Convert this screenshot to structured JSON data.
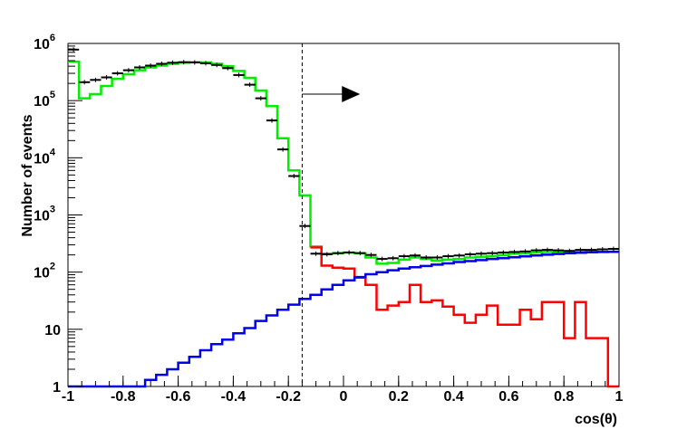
{
  "chart_data": {
    "type": "line",
    "title": "",
    "xlabel": "cos(θ)",
    "ylabel": "Number of events",
    "xlim": [
      -1,
      1
    ],
    "ylim": [
      1,
      1000000
    ],
    "y_scale": "log",
    "x_ticks": [
      {
        "value": -1,
        "label": "-1"
      },
      {
        "value": -0.8,
        "label": "-0.8"
      },
      {
        "value": -0.6,
        "label": "-0.6"
      },
      {
        "value": -0.4,
        "label": "-0.4"
      },
      {
        "value": -0.2,
        "label": "-0.2"
      },
      {
        "value": 0,
        "label": "0"
      },
      {
        "value": 0.2,
        "label": "0.2"
      },
      {
        "value": 0.4,
        "label": "0.4"
      },
      {
        "value": 0.6,
        "label": "0.6"
      },
      {
        "value": 0.8,
        "label": "0.8"
      },
      {
        "value": 1,
        "label": "1"
      }
    ],
    "y_ticks": [
      {
        "value": 1,
        "base": "1",
        "exp": ""
      },
      {
        "value": 10,
        "base": "10",
        "exp": ""
      },
      {
        "value": 100,
        "base": "10",
        "exp": "2"
      },
      {
        "value": 1000,
        "base": "10",
        "exp": "3"
      },
      {
        "value": 10000,
        "base": "10",
        "exp": "4"
      },
      {
        "value": 100000,
        "base": "10",
        "exp": "5"
      },
      {
        "value": 1000000,
        "base": "10",
        "exp": "6"
      }
    ],
    "cut_line": {
      "x": -0.15
    },
    "cut_arrow": {
      "from_x": -0.15,
      "to_x": 0.06,
      "y": 130000
    },
    "bin_edges": [
      -1,
      -0.96,
      -0.92,
      -0.88,
      -0.84,
      -0.8,
      -0.76,
      -0.72,
      -0.68,
      -0.64,
      -0.6,
      -0.56,
      -0.52,
      -0.48,
      -0.44,
      -0.4,
      -0.36,
      -0.32,
      -0.28,
      -0.24,
      -0.2,
      -0.16,
      -0.12,
      -0.08,
      -0.04,
      0,
      0.04,
      0.08,
      0.12,
      0.16,
      0.2,
      0.24,
      0.28,
      0.32,
      0.36,
      0.4,
      0.44,
      0.48,
      0.52,
      0.56,
      0.6,
      0.64,
      0.68,
      0.72,
      0.76,
      0.8,
      0.84,
      0.88,
      0.92,
      0.96,
      1
    ],
    "series": [
      {
        "color": "#00ee00",
        "style": "step",
        "values": [
          480000,
          110000,
          130000,
          180000,
          240000,
          290000,
          340000,
          380000,
          410000,
          440000,
          460000,
          470000,
          465000,
          440000,
          400000,
          330000,
          250000,
          150000,
          80000,
          22000,
          6000,
          2200,
          280,
          210,
          215,
          220,
          215,
          180,
          140,
          145,
          165,
          180,
          170,
          160,
          165,
          170,
          180,
          185,
          190,
          200,
          210,
          215,
          220,
          225,
          225,
          230,
          230,
          230,
          225,
          225
        ]
      },
      {
        "color": "#ff0000",
        "style": "step",
        "values": [
          null,
          null,
          null,
          null,
          null,
          null,
          null,
          null,
          null,
          null,
          null,
          null,
          null,
          null,
          null,
          null,
          null,
          null,
          null,
          null,
          null,
          null,
          270,
          130,
          120,
          115,
          80,
          60,
          22,
          26,
          30,
          60,
          30,
          32,
          25,
          18,
          13,
          18,
          26,
          12,
          12,
          22,
          15,
          30,
          30,
          7,
          30,
          7,
          7,
          1
        ]
      },
      {
        "color": "#0000ee",
        "style": "step",
        "values": [
          1,
          1,
          1,
          1,
          1,
          1,
          1,
          1.3,
          1.6,
          2,
          2.6,
          3.3,
          4.3,
          5.5,
          6.6,
          8.5,
          10.5,
          14,
          17.5,
          22,
          27,
          34,
          40,
          50,
          60,
          72,
          82,
          92,
          100,
          108,
          115,
          122,
          128,
          135,
          142,
          150,
          156,
          162,
          170,
          175,
          182,
          188,
          195,
          202,
          208,
          214,
          219,
          222,
          225,
          228
        ]
      },
      {
        "color": "#000000",
        "style": "points",
        "values": [
          780000,
          210000,
          230000,
          255000,
          300000,
          340000,
          380000,
          410000,
          440000,
          460000,
          470000,
          465000,
          450000,
          420000,
          370000,
          280000,
          190000,
          110000,
          45000,
          14000,
          4800,
          640,
          210,
          205,
          215,
          220,
          215,
          200,
          170,
          175,
          190,
          195,
          180,
          180,
          190,
          195,
          205,
          210,
          215,
          220,
          225,
          230,
          240,
          245,
          240,
          235,
          245,
          245,
          250,
          255
        ]
      }
    ]
  }
}
